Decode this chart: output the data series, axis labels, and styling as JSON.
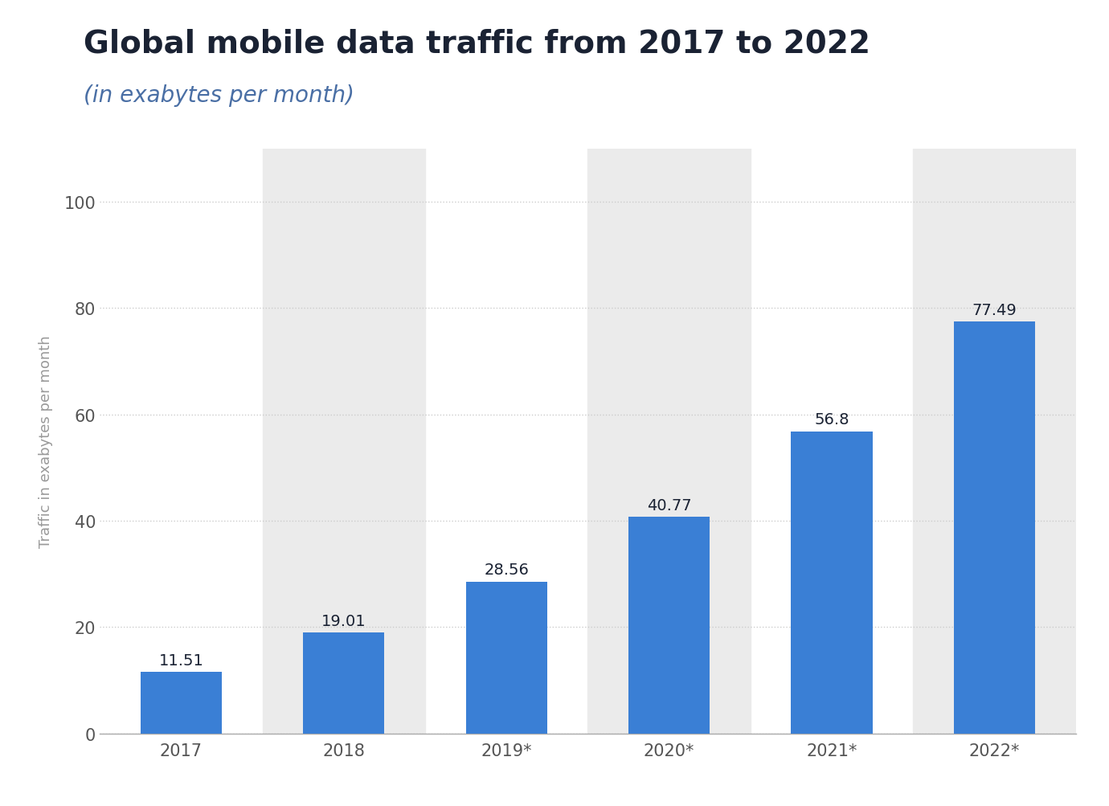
{
  "title": "Global mobile data traffic from 2017 to 2022",
  "subtitle": "(in exabytes per month)",
  "categories": [
    "2017",
    "2018",
    "2019*",
    "2020*",
    "2021*",
    "2022*"
  ],
  "values": [
    11.51,
    19.01,
    28.56,
    40.77,
    56.8,
    77.49
  ],
  "bar_color": "#3a7fd5",
  "ylabel": "Traffic in exabytes per month",
  "ylim": [
    0,
    110
  ],
  "yticks": [
    0,
    20,
    40,
    60,
    80,
    100
  ],
  "background_color": "#ffffff",
  "plot_bg_color": "#ffffff",
  "col_stripe_color": "#ebebeb",
  "title_color": "#1a2233",
  "subtitle_color": "#4a6fa5",
  "axis_label_color": "#999999",
  "tick_label_color": "#555555",
  "grid_color": "#cccccc",
  "title_fontsize": 28,
  "subtitle_fontsize": 20,
  "bar_label_fontsize": 14,
  "tick_fontsize": 15,
  "ylabel_fontsize": 13
}
